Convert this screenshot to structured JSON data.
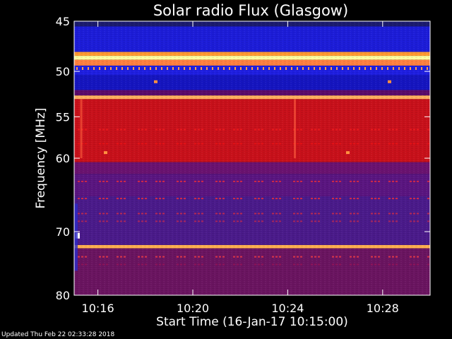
{
  "chart_data": {
    "type": "heatmap",
    "title": "Solar radio Flux (Glasgow)",
    "xlabel": "Start Time (16-Jan-17 10:15:00)",
    "ylabel": "Frequency [MHz]",
    "x_unit": "minutes",
    "xlim": [
      "10:15:00",
      "10:30:00"
    ],
    "ylim": [
      45,
      80
    ],
    "y_inverted": true,
    "x_ticks": [
      "10:16",
      "10:20",
      "10:24",
      "10:28"
    ],
    "y_ticks": [
      45,
      50,
      55,
      60,
      70,
      80
    ],
    "y_scale": "log",
    "bands": [
      {
        "from": 45.0,
        "to": 45.5,
        "color": "#1a1a6e"
      },
      {
        "from": 45.5,
        "to": 48.0,
        "color": "#1c1cd8"
      },
      {
        "from": 48.0,
        "to": 48.4,
        "color": "#ff9a30"
      },
      {
        "from": 48.4,
        "to": 48.8,
        "color": "#ffffa0"
      },
      {
        "from": 48.8,
        "to": 49.4,
        "color": "#ff8040"
      },
      {
        "from": 49.4,
        "to": 50.4,
        "color": "#1e1ee0"
      },
      {
        "from": 50.4,
        "to": 52.0,
        "color": "#1515c0"
      },
      {
        "from": 52.0,
        "to": 52.6,
        "color": "#5a0a6a"
      },
      {
        "from": 52.6,
        "to": 53.0,
        "color": "#ffb060"
      },
      {
        "from": 53.0,
        "to": 60.5,
        "color": "#c8101a"
      },
      {
        "from": 60.5,
        "to": 62.0,
        "color": "#6a1270"
      },
      {
        "from": 62.0,
        "to": 65.0,
        "color": "#5a1580"
      },
      {
        "from": 65.0,
        "to": 72.0,
        "color": "#4a1a8a"
      },
      {
        "from": 72.0,
        "to": 72.5,
        "color": "#ffb050"
      },
      {
        "from": 72.5,
        "to": 80.0,
        "color": "#6a1460"
      }
    ]
  },
  "footer": {
    "updated": "Updated Thu Feb 22 02:33:28 2018"
  }
}
